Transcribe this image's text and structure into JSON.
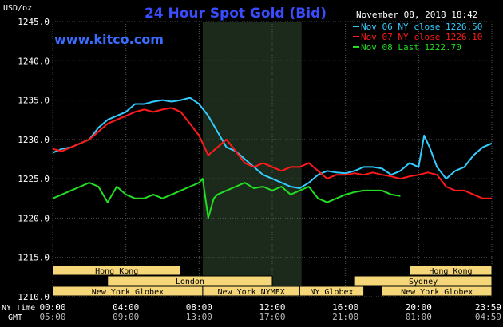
{
  "chart_data": {
    "type": "line",
    "title": "24 Hour Spot Gold (Bid)",
    "website": "www.kitco.com",
    "date_label": "November 08, 2018 18:42",
    "ylabel": "USD/oz",
    "ylim": [
      1210,
      1245
    ],
    "yticks": [
      "1210.0",
      "1215.0",
      "1220.0",
      "1225.0",
      "1230.0",
      "1235.0",
      "1240.0",
      "1245.0"
    ],
    "ytick_values": [
      1210,
      1215,
      1220,
      1225,
      1230,
      1235,
      1240,
      1245
    ],
    "x_axis_name_top": "NY Time",
    "x_axis_name_bottom": "GMT",
    "x_range_hours": [
      0,
      24
    ],
    "x_ticks": [
      {
        "hour": 0,
        "ny": "00:00",
        "gmt": "05:00"
      },
      {
        "hour": 4,
        "ny": "04:00",
        "gmt": "09:00"
      },
      {
        "hour": 8,
        "ny": "08:00",
        "gmt": "13:00"
      },
      {
        "hour": 12,
        "ny": "12:00",
        "gmt": "17:00"
      },
      {
        "hour": 16,
        "ny": "16:00",
        "gmt": "21:00"
      },
      {
        "hour": 20,
        "ny": "20:00",
        "gmt": "01:00"
      },
      {
        "hour": 24,
        "ny": "23:59",
        "gmt": "04:59"
      }
    ],
    "shaded_session_hours": [
      8.2,
      13.6
    ],
    "grid": true,
    "legend_position": "top-right",
    "series": [
      {
        "name": "Nov 06 NY close 1226.50",
        "color": "#33ccff",
        "x": [
          0,
          0.5,
          1,
          1.5,
          2,
          2.5,
          3,
          3.5,
          4,
          4.5,
          5,
          5.5,
          6,
          6.5,
          7,
          7.5,
          8,
          8.5,
          9,
          9.5,
          10,
          10.5,
          11,
          11.5,
          12,
          12.5,
          13,
          13.5,
          14,
          14.5,
          15,
          15.5,
          16,
          16.5,
          17,
          17.5,
          18,
          18.5,
          19,
          19.5,
          20,
          20.3,
          20.6,
          21,
          21.5,
          22,
          22.5,
          23,
          23.5,
          24
        ],
        "y": [
          1228.3,
          1228.8,
          1229.0,
          1229.5,
          1230.0,
          1231.5,
          1232.5,
          1233.0,
          1233.5,
          1234.5,
          1234.5,
          1234.8,
          1235.0,
          1234.8,
          1235.0,
          1235.3,
          1234.5,
          1233.0,
          1231.0,
          1229.0,
          1228.5,
          1227.5,
          1226.5,
          1225.5,
          1225.0,
          1224.5,
          1224.0,
          1223.8,
          1224.5,
          1225.5,
          1226.0,
          1225.8,
          1225.7,
          1226.0,
          1226.5,
          1226.5,
          1226.3,
          1225.5,
          1226.0,
          1227.0,
          1226.5,
          1230.5,
          1229.0,
          1226.5,
          1225.0,
          1226.0,
          1226.5,
          1228.0,
          1229.0,
          1229.5
        ]
      },
      {
        "name": "Nov 07 NY close 1226.10",
        "color": "#ff1a1a",
        "x": [
          0,
          0.5,
          1,
          1.5,
          2,
          2.5,
          3,
          3.5,
          4,
          4.5,
          5,
          5.5,
          6,
          6.5,
          7,
          7.5,
          8,
          8.5,
          9,
          9.5,
          10,
          10.5,
          11,
          11.5,
          12,
          12.5,
          13,
          13.5,
          14,
          14.5,
          15,
          15.5,
          16,
          16.5,
          17,
          17.5,
          18,
          18.5,
          19,
          19.5,
          20,
          20.5,
          21,
          21.5,
          22,
          22.5,
          23,
          23.5,
          24
        ],
        "y": [
          1228.8,
          1228.5,
          1229.0,
          1229.5,
          1230.0,
          1231.0,
          1232.0,
          1232.5,
          1233.0,
          1233.5,
          1233.8,
          1233.5,
          1233.8,
          1234.0,
          1233.5,
          1232.0,
          1230.5,
          1228.0,
          1229.0,
          1230.0,
          1228.5,
          1227.0,
          1226.5,
          1227.0,
          1226.5,
          1226.0,
          1226.5,
          1226.5,
          1227.0,
          1226.0,
          1225.0,
          1225.5,
          1225.5,
          1225.7,
          1225.5,
          1225.8,
          1225.5,
          1225.3,
          1225.0,
          1225.3,
          1225.5,
          1225.8,
          1225.5,
          1224.0,
          1223.5,
          1223.5,
          1223.0,
          1222.5,
          1222.5
        ]
      },
      {
        "name": "Nov 08 Last 1222.70",
        "color": "#22dd22",
        "x": [
          0,
          0.5,
          1,
          1.5,
          2,
          2.5,
          3,
          3.5,
          4,
          4.5,
          5,
          5.5,
          6,
          6.5,
          7,
          7.5,
          8,
          8.2,
          8.5,
          8.8,
          9,
          9.5,
          10,
          10.5,
          11,
          11.5,
          12,
          12.5,
          13,
          13.5,
          14,
          14.5,
          15,
          15.5,
          16,
          16.5,
          17,
          17.5,
          18,
          18.5,
          19
        ],
        "y": [
          1222.5,
          1223.0,
          1223.5,
          1224.0,
          1224.5,
          1224.0,
          1222.0,
          1224.0,
          1223.0,
          1222.5,
          1222.5,
          1223.0,
          1222.5,
          1223.0,
          1223.5,
          1224.0,
          1224.5,
          1225.0,
          1220.0,
          1222.5,
          1223.0,
          1223.5,
          1224.0,
          1224.5,
          1223.8,
          1224.0,
          1223.5,
          1224.0,
          1223.0,
          1223.5,
          1224.0,
          1222.5,
          1222.0,
          1222.5,
          1223.0,
          1223.3,
          1223.5,
          1223.5,
          1223.5,
          1223.0,
          1222.8
        ]
      }
    ],
    "sessions": [
      {
        "label": "Hong Kong",
        "row": 0,
        "start": 0,
        "end": 7
      },
      {
        "label": "Hong Kong",
        "row": 0,
        "start": 19.5,
        "end": 24
      },
      {
        "label": "London",
        "row": 1,
        "start": 3,
        "end": 12
      },
      {
        "label": "Sydney",
        "row": 1,
        "start": 16.5,
        "end": 24
      },
      {
        "label": "New York Globex",
        "row": 2,
        "start": 0,
        "end": 8.2
      },
      {
        "label": "New York NYMEX",
        "row": 2,
        "start": 8.2,
        "end": 13.5
      },
      {
        "label": "NY Globex",
        "row": 2,
        "start": 13.5,
        "end": 17
      },
      {
        "label": "New York Globex",
        "row": 2,
        "start": 18,
        "end": 24
      }
    ],
    "colors": {
      "background": "#000000",
      "grid": "#555555",
      "axis_text": "#ffffff",
      "title": "#3a4cff",
      "website": "#3a6cff",
      "shade": "#1b2a1b",
      "session_fill": "#f5d77a",
      "session_text": "#000000"
    }
  }
}
